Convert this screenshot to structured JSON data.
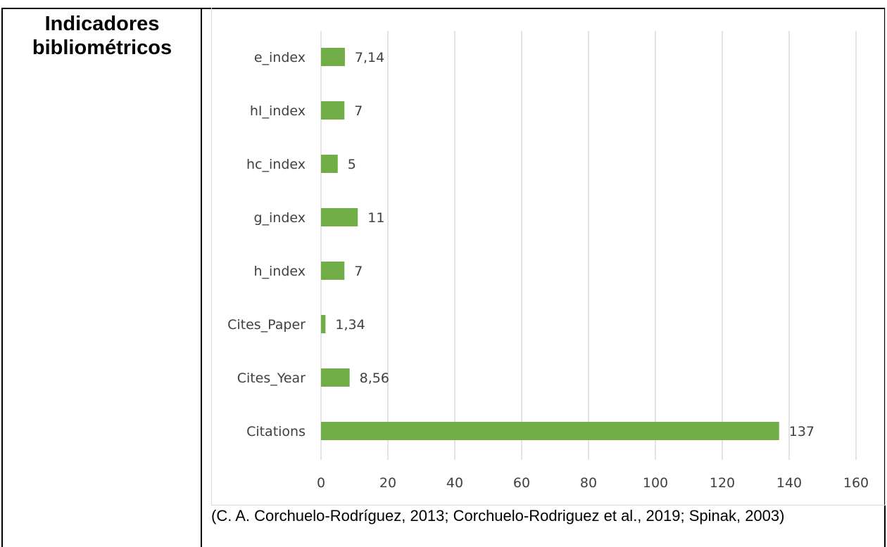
{
  "row": {
    "title": "Indicadores bibliométricos"
  },
  "caption": "(C. A. Corchuelo-Rodríguez, 2013; Corchuelo-Rodriguez et al., 2019; Spinak, 2003)",
  "chart_data": {
    "type": "bar",
    "orientation": "horizontal",
    "categories": [
      "e_index",
      "hI_index",
      "hc_index",
      "g_index",
      "h_index",
      "Cites_Paper",
      "Cites_Year",
      "Citations"
    ],
    "values": [
      7.14,
      7,
      5,
      11,
      7,
      1.34,
      8.56,
      137
    ],
    "data_labels": [
      "7,14",
      "7",
      "5",
      "11",
      "7",
      "1,34",
      "8,56",
      "137"
    ],
    "x_ticks": [
      0,
      20,
      40,
      60,
      80,
      100,
      120,
      140,
      160
    ],
    "xlim": [
      0,
      160
    ],
    "grid": true,
    "bar_color": "#70ad47",
    "grid_color": "#d9d9d9",
    "label_color": "#404040"
  }
}
